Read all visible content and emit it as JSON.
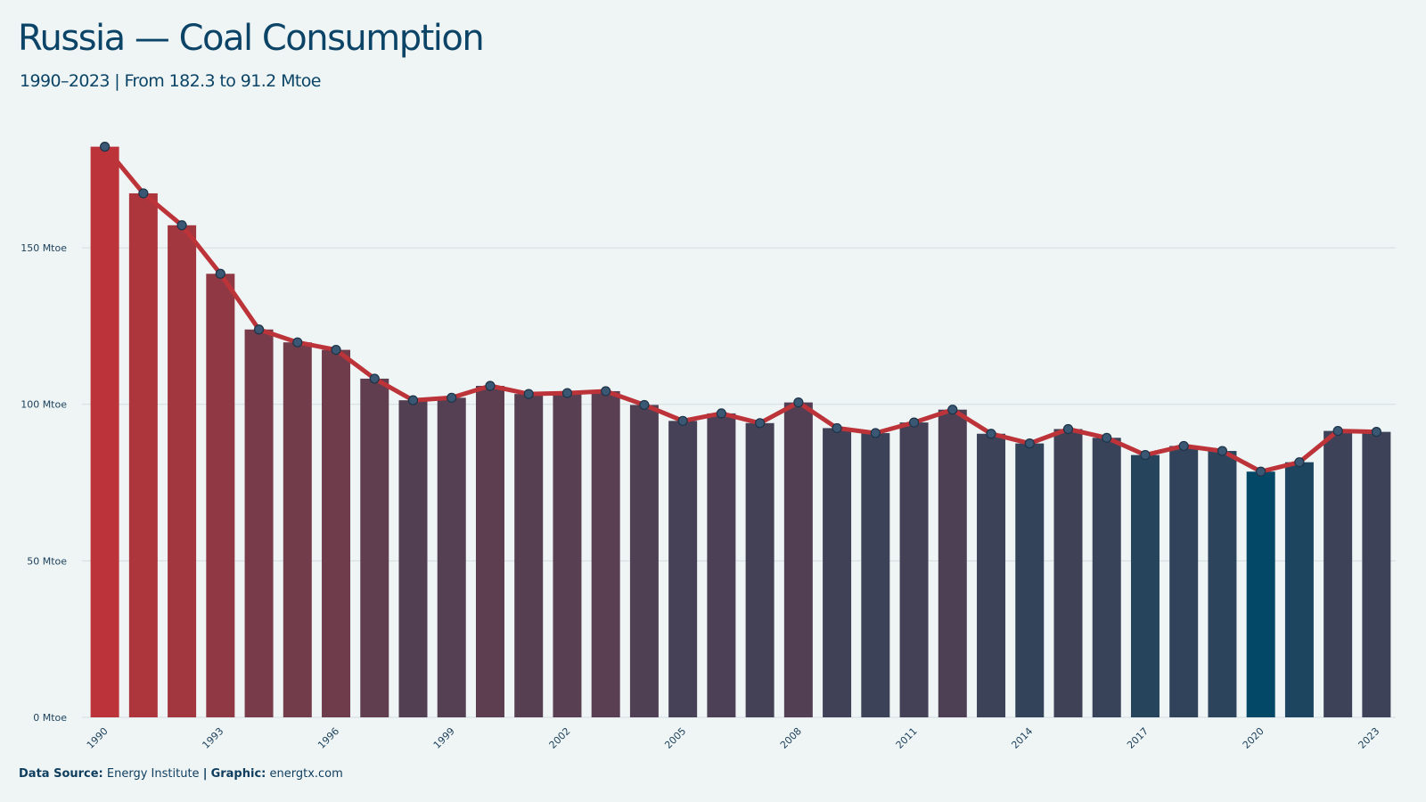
{
  "title": "Russia — Coal Consumption",
  "subtitle": "1990–2023 | From 182.3 to 91.2 Mtoe",
  "footer": {
    "source_label": "Data Source:",
    "source_value": "Energy Institute",
    "separator": "|",
    "graphic_label": "Graphic:",
    "graphic_value": "energtx.com"
  },
  "colors": {
    "background": "#eff5f5",
    "high": "#bc3439",
    "low": "#034866",
    "line": "#bc3439",
    "marker_fill": "#3a5874",
    "grid": "#d3dde2"
  },
  "chart_data": {
    "type": "bar",
    "x": [
      1990,
      1991,
      1992,
      1993,
      1994,
      1995,
      1996,
      1997,
      1998,
      1999,
      2000,
      2001,
      2002,
      2003,
      2004,
      2005,
      2006,
      2007,
      2008,
      2009,
      2010,
      2011,
      2012,
      2013,
      2014,
      2015,
      2016,
      2017,
      2018,
      2019,
      2020,
      2021,
      2022,
      2023
    ],
    "values": [
      182.3,
      167.4,
      157.2,
      141.7,
      123.9,
      119.8,
      117.4,
      108.2,
      101.3,
      102.1,
      105.9,
      103.3,
      103.6,
      104.2,
      99.8,
      94.7,
      97.1,
      94.0,
      100.6,
      92.4,
      90.8,
      94.2,
      98.3,
      90.6,
      87.5,
      92.1,
      89.3,
      83.8,
      86.7,
      85.1,
      78.5,
      81.5,
      91.5,
      91.2
    ],
    "series": [
      {
        "kind": "bars"
      },
      {
        "kind": "line"
      }
    ],
    "xticks": [
      "1990",
      "1993",
      "1996",
      "1999",
      "2002",
      "2005",
      "2008",
      "2011",
      "2014",
      "2017",
      "2020",
      "2023"
    ],
    "yticks": [
      "0 Mtoe",
      "50 Mtoe",
      "100 Mtoe",
      "150 Mtoe"
    ],
    "ytick_values": [
      0,
      50,
      100,
      150
    ],
    "ylim": [
      0,
      195
    ],
    "grid": true,
    "unit": "Mtoe"
  }
}
